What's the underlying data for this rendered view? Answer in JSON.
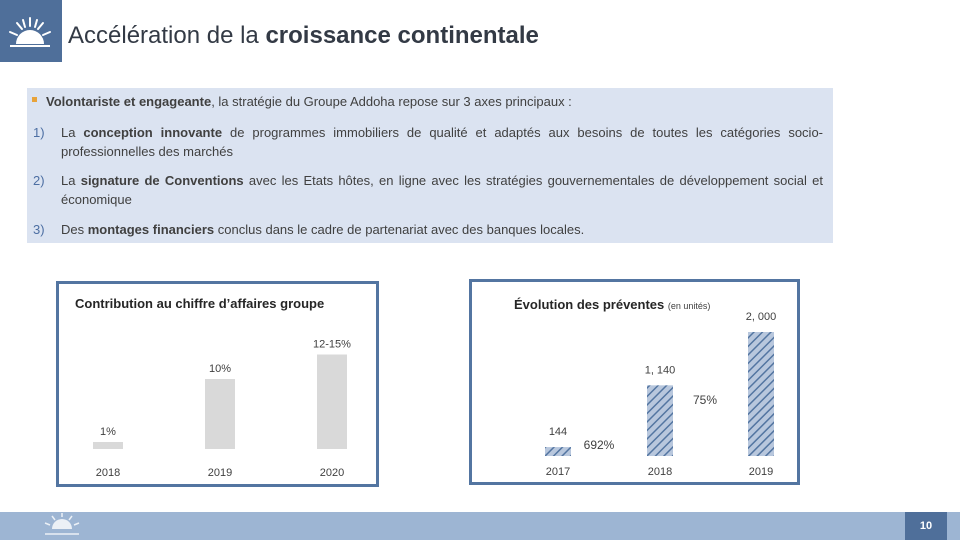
{
  "header": {
    "title_normal": "Accélération de la ",
    "title_bold": "croissance continentale"
  },
  "intro": {
    "bold": "Volontariste et engageante",
    "rest": ", la stratégie du Groupe Addoha repose sur 3 axes principaux :"
  },
  "axes": [
    {
      "num": "1)",
      "pre": "La ",
      "bold": "conception innovante",
      "post": " de programmes immobiliers de qualité et adaptés aux besoins de toutes les catégories socio-professionnelles des marchés"
    },
    {
      "num": "2)",
      "pre": "La ",
      "bold": "signature de Conventions",
      "post": " avec les Etats hôtes, en ligne avec les stratégies gouvernementales de développement social et économique"
    },
    {
      "num": "3)",
      "pre": "Des ",
      "bold": "montages financiers",
      "post": " conclus dans le cadre de partenariat avec des banques locales."
    }
  ],
  "footer": {
    "page_number": "10"
  },
  "chart_data": [
    {
      "type": "bar",
      "title": "Contribution au chiffre d’affaires groupe",
      "categories": [
        "2018",
        "2019",
        "2020"
      ],
      "values": [
        1,
        10,
        13.5
      ],
      "labels": [
        "1%",
        "10%",
        "12-15%"
      ],
      "ylim": [
        0,
        15
      ],
      "colors": {
        "bar": "#d9d9d9"
      }
    },
    {
      "type": "bar",
      "title": "Évolution des préventes",
      "unit": "(en unités)",
      "categories": [
        "2017",
        "2018",
        "2019"
      ],
      "values": [
        144,
        1140,
        2000
      ],
      "labels": [
        "144",
        "1, 140",
        "2, 000"
      ],
      "growth_labels": [
        "692%",
        "75%"
      ],
      "ylim": [
        0,
        2000
      ],
      "colors": {
        "bar": "#b8c7dd",
        "hatch": "#5375a1"
      }
    }
  ]
}
